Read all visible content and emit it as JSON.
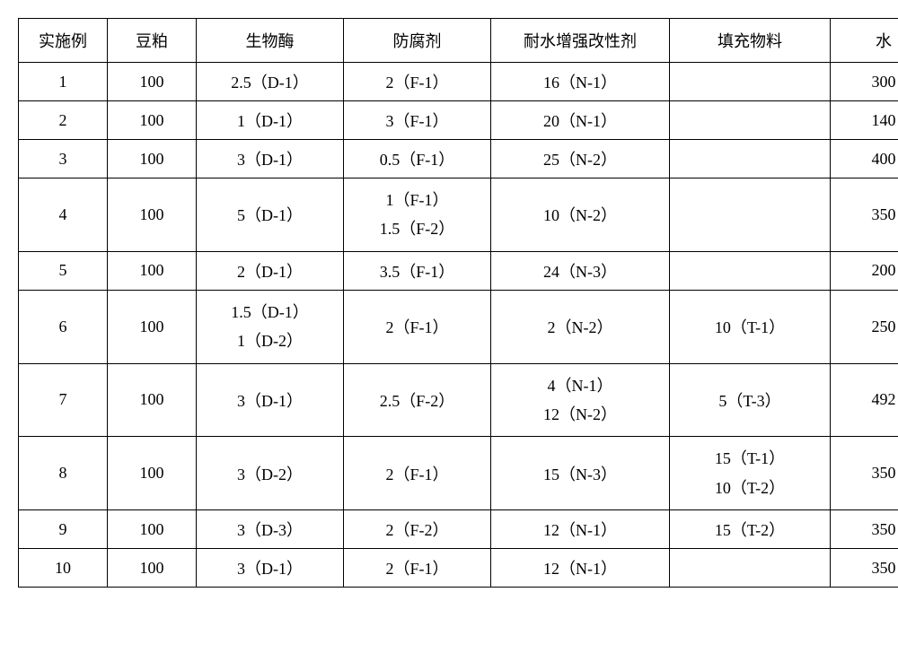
{
  "table": {
    "columns": [
      "实施例",
      "豆粕",
      "生物酶",
      "防腐剂",
      "耐水增强改性剂",
      "填充物料",
      "水"
    ],
    "col_classes": [
      "col0",
      "col1",
      "col2",
      "col3",
      "col4",
      "col5",
      "col6"
    ],
    "rows": [
      {
        "cells": [
          "1",
          "100",
          "2.5（D-1）",
          "2（F-1）",
          "16（N-1）",
          "",
          "300"
        ]
      },
      {
        "cells": [
          "2",
          "100",
          "1（D-1）",
          "3（F-1）",
          "20（N-1）",
          "",
          "140"
        ]
      },
      {
        "cells": [
          "3",
          "100",
          "3（D-1）",
          "0.5（F-1）",
          "25（N-2）",
          "",
          "400"
        ]
      },
      {
        "cells": [
          "4",
          "100",
          "5（D-1）",
          "1（F-1）\n1.5（F-2）",
          "10（N-2）",
          "",
          "350"
        ]
      },
      {
        "cells": [
          "5",
          "100",
          "2（D-1）",
          "3.5（F-1）",
          "24（N-3）",
          "",
          "200"
        ]
      },
      {
        "cells": [
          "6",
          "100",
          "1.5（D-1）\n1（D-2）",
          "2（F-1）",
          "2（N-2）",
          "10（T-1）",
          "250"
        ]
      },
      {
        "cells": [
          "7",
          "100",
          "3（D-1）",
          "2.5（F-2）",
          "4（N-1）\n12（N-2）",
          "5（T-3）",
          "492"
        ]
      },
      {
        "cells": [
          "8",
          "100",
          "3（D-2）",
          "2（F-1）",
          "15（N-3）",
          "15（T-1）\n10（T-2）",
          "350"
        ]
      },
      {
        "cells": [
          "9",
          "100",
          "3（D-3）",
          "2（F-2）",
          "12（N-1）",
          "15（T-2）",
          "350"
        ]
      },
      {
        "cells": [
          "10",
          "100",
          "3（D-1）",
          "2（F-1）",
          "12（N-1）",
          "",
          "350"
        ]
      }
    ],
    "font_size": 18,
    "border_color": "#000000",
    "background_color": "#ffffff",
    "text_color": "#000000"
  }
}
